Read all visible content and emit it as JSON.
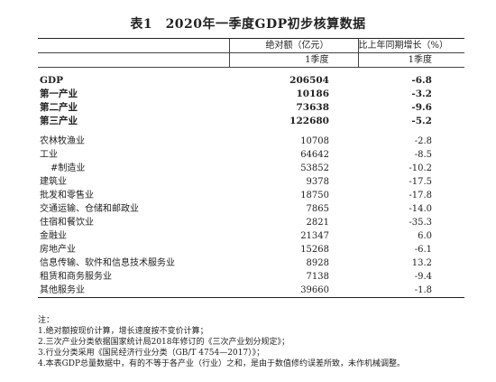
{
  "title": "表1　2020年一季度GDP初步核算数据",
  "header": {
    "col_value": "绝对额（亿元）",
    "col_growth": "比上年同期增长（%）",
    "sub_value": "1季度",
    "sub_growth": "1季度"
  },
  "summary_rows": [
    {
      "name": "GDP",
      "value": "206504",
      "growth": "-6.8"
    },
    {
      "name": "第一产业",
      "value": "10186",
      "growth": "-3.2"
    },
    {
      "name": "第二产业",
      "value": "73638",
      "growth": "-9.6"
    },
    {
      "name": "第三产业",
      "value": "122680",
      "growth": "-5.2"
    }
  ],
  "industry_rows": [
    {
      "name": "农林牧渔业",
      "value": "10708",
      "growth": "-2.8"
    },
    {
      "name": "工业",
      "value": "64642",
      "growth": "-8.5"
    },
    {
      "name": "#制造业",
      "value": "53852",
      "growth": "-10.2"
    },
    {
      "name": "建筑业",
      "value": "9378",
      "growth": "-17.5"
    },
    {
      "name": "批发和零售业",
      "value": "18750",
      "growth": "-17.8"
    },
    {
      "name": "交通运输、仓储和邮政业",
      "value": "7865",
      "growth": "-14.0"
    },
    {
      "name": "住宿和餐饮业",
      "value": "2821",
      "growth": "-35.3"
    },
    {
      "name": "金融业",
      "value": "21347",
      "growth": "6.0"
    },
    {
      "name": "房地产业",
      "value": "15268",
      "growth": "-6.1"
    },
    {
      "name": "信息传输、软件和信息技术服务业",
      "value": "8928",
      "growth": "13.2"
    },
    {
      "name": "租赁和商务服务业",
      "value": "7138",
      "growth": "-9.4"
    },
    {
      "name": "其他服务业",
      "value": "39660",
      "growth": "-1.8"
    }
  ],
  "notes": {
    "heading": "注：",
    "items": [
      "1.绝对额按现价计算，增长速度按不变价计算；",
      "2.三次产业分类依据国家统计局2018年修订的《三次产业划分规定》；",
      "3.行业分类采用《国民经济行业分类（GB/T 4754—2017）》；",
      "4.本表GDP总量数据中，有的不等于各产业（行业）之和，是由于数值修约误差所致，未作机械调整。"
    ]
  }
}
